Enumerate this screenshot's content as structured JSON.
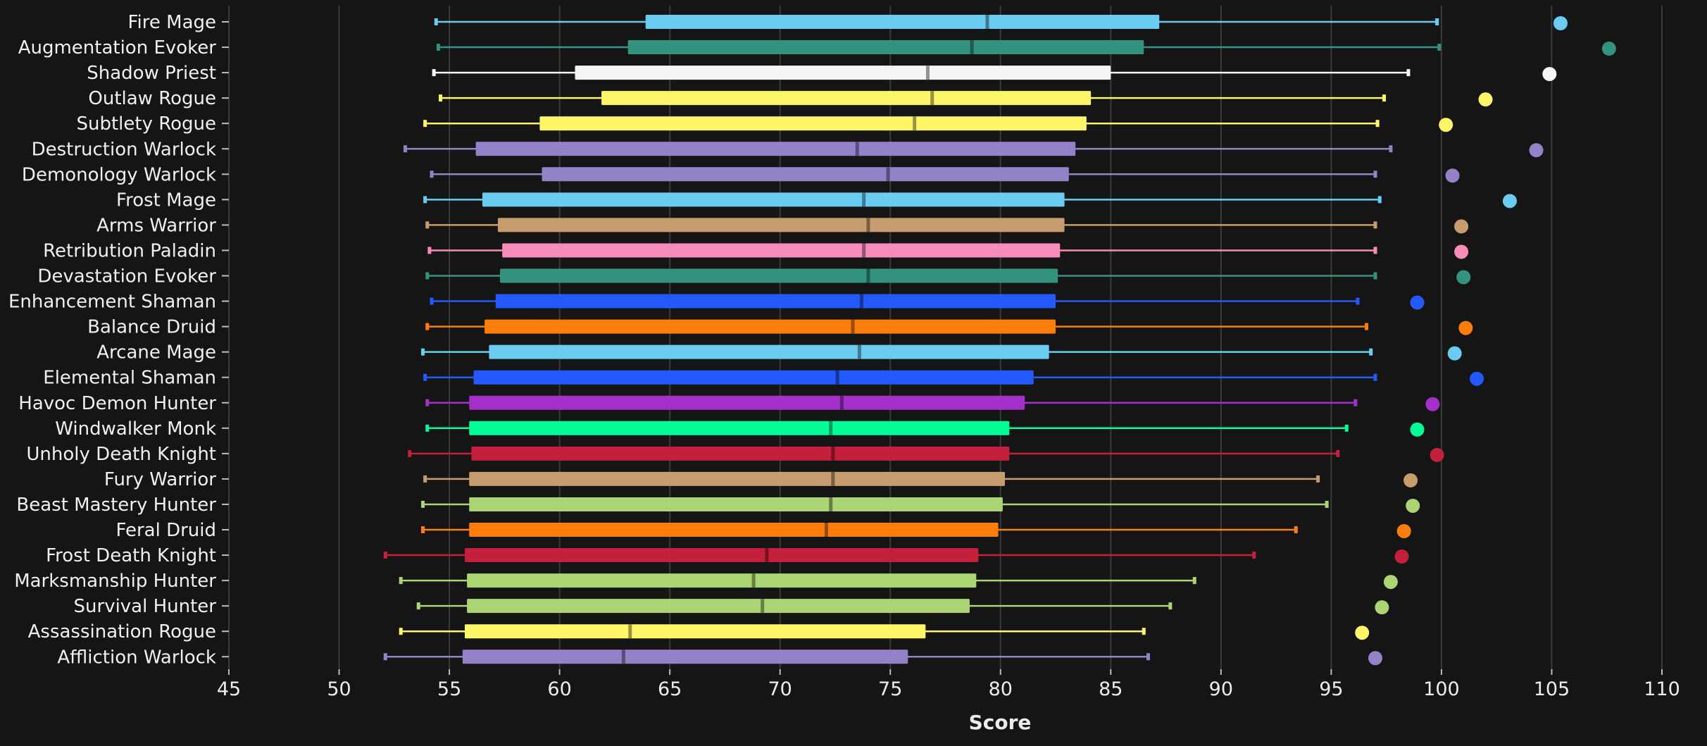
{
  "chart_data": {
    "type": "boxplot",
    "title": "",
    "xlabel": "Score",
    "ylabel": "",
    "xlim": [
      45,
      110
    ],
    "x_ticks": [
      45,
      50,
      55,
      60,
      65,
      70,
      75,
      80,
      85,
      90,
      95,
      100,
      105,
      110
    ],
    "grid": "vertical",
    "background": "#151515",
    "series": [
      {
        "name": "Fire Mage",
        "color": "#69CCF0",
        "whisker_low": 54.4,
        "q1": 63.9,
        "median": 79.4,
        "q3": 87.2,
        "whisker_high": 99.8,
        "max": 105.4
      },
      {
        "name": "Augmentation Evoker",
        "color": "#33937F",
        "whisker_low": 54.5,
        "q1": 63.1,
        "median": 78.7,
        "q3": 86.5,
        "whisker_high": 99.9,
        "max": 107.6
      },
      {
        "name": "Shadow Priest",
        "color": "#F5F5F5",
        "whisker_low": 54.3,
        "q1": 60.7,
        "median": 76.7,
        "q3": 85.0,
        "whisker_high": 98.5,
        "max": 104.9
      },
      {
        "name": "Outlaw Rogue",
        "color": "#FFF569",
        "whisker_low": 54.6,
        "q1": 61.9,
        "median": 76.9,
        "q3": 84.1,
        "whisker_high": 97.4,
        "max": 102.0
      },
      {
        "name": "Subtlety Rogue",
        "color": "#FFF569",
        "whisker_low": 53.9,
        "q1": 59.1,
        "median": 76.1,
        "q3": 83.9,
        "whisker_high": 97.1,
        "max": 100.2
      },
      {
        "name": "Destruction Warlock",
        "color": "#9482C9",
        "whisker_low": 53.0,
        "q1": 56.2,
        "median": 73.5,
        "q3": 83.4,
        "whisker_high": 97.7,
        "max": 104.3
      },
      {
        "name": "Demonology Warlock",
        "color": "#9482C9",
        "whisker_low": 54.2,
        "q1": 59.2,
        "median": 74.9,
        "q3": 83.1,
        "whisker_high": 97.0,
        "max": 100.5
      },
      {
        "name": "Frost Mage",
        "color": "#69CCF0",
        "whisker_low": 53.9,
        "q1": 56.5,
        "median": 73.8,
        "q3": 82.9,
        "whisker_high": 97.2,
        "max": 103.1
      },
      {
        "name": "Arms Warrior",
        "color": "#C79C6E",
        "whisker_low": 54.0,
        "q1": 57.2,
        "median": 74.0,
        "q3": 82.9,
        "whisker_high": 97.0,
        "max": 100.9
      },
      {
        "name": "Retribution Paladin",
        "color": "#F58CBA",
        "whisker_low": 54.1,
        "q1": 57.4,
        "median": 73.8,
        "q3": 82.7,
        "whisker_high": 97.0,
        "max": 100.9
      },
      {
        "name": "Devastation Evoker",
        "color": "#33937F",
        "whisker_low": 54.0,
        "q1": 57.3,
        "median": 74.0,
        "q3": 82.6,
        "whisker_high": 97.0,
        "max": 101.0
      },
      {
        "name": "Enhancement Shaman",
        "color": "#2459FF",
        "whisker_low": 54.2,
        "q1": 57.1,
        "median": 73.7,
        "q3": 82.5,
        "whisker_high": 96.2,
        "max": 98.9
      },
      {
        "name": "Balance Druid",
        "color": "#FF7D0A",
        "whisker_low": 54.0,
        "q1": 56.6,
        "median": 73.3,
        "q3": 82.5,
        "whisker_high": 96.6,
        "max": 101.1
      },
      {
        "name": "Arcane Mage",
        "color": "#69CCF0",
        "whisker_low": 53.8,
        "q1": 56.8,
        "median": 73.6,
        "q3": 82.2,
        "whisker_high": 96.8,
        "max": 100.6
      },
      {
        "name": "Elemental Shaman",
        "color": "#2459FF",
        "whisker_low": 53.9,
        "q1": 56.1,
        "median": 72.6,
        "q3": 81.5,
        "whisker_high": 97.0,
        "max": 101.6
      },
      {
        "name": "Havoc Demon Hunter",
        "color": "#A330C9",
        "whisker_low": 54.0,
        "q1": 55.9,
        "median": 72.8,
        "q3": 81.1,
        "whisker_high": 96.1,
        "max": 99.6
      },
      {
        "name": "Windwalker Monk",
        "color": "#00FF96",
        "whisker_low": 54.0,
        "q1": 55.9,
        "median": 72.3,
        "q3": 80.4,
        "whisker_high": 95.7,
        "max": 98.9
      },
      {
        "name": "Unholy Death Knight",
        "color": "#C41F3B",
        "whisker_low": 53.2,
        "q1": 56.0,
        "median": 72.4,
        "q3": 80.4,
        "whisker_high": 95.3,
        "max": 99.8
      },
      {
        "name": "Fury Warrior",
        "color": "#C79C6E",
        "whisker_low": 53.9,
        "q1": 55.9,
        "median": 72.4,
        "q3": 80.2,
        "whisker_high": 94.4,
        "max": 98.6
      },
      {
        "name": "Beast Mastery Hunter",
        "color": "#ABD473",
        "whisker_low": 53.8,
        "q1": 55.9,
        "median": 72.3,
        "q3": 80.1,
        "whisker_high": 94.8,
        "max": 98.7
      },
      {
        "name": "Feral Druid",
        "color": "#FF7D0A",
        "whisker_low": 53.8,
        "q1": 55.9,
        "median": 72.1,
        "q3": 79.9,
        "whisker_high": 93.4,
        "max": 98.3
      },
      {
        "name": "Frost Death Knight",
        "color": "#C41F3B",
        "whisker_low": 52.1,
        "q1": 55.7,
        "median": 69.4,
        "q3": 79.0,
        "whisker_high": 91.5,
        "max": 98.2
      },
      {
        "name": "Marksmanship Hunter",
        "color": "#ABD473",
        "whisker_low": 52.8,
        "q1": 55.8,
        "median": 68.8,
        "q3": 78.9,
        "whisker_high": 88.8,
        "max": 97.7
      },
      {
        "name": "Survival Hunter",
        "color": "#ABD473",
        "whisker_low": 53.6,
        "q1": 55.8,
        "median": 69.2,
        "q3": 78.6,
        "whisker_high": 87.7,
        "max": 97.3
      },
      {
        "name": "Assassination Rogue",
        "color": "#FFF569",
        "whisker_low": 52.8,
        "q1": 55.7,
        "median": 63.2,
        "q3": 76.6,
        "whisker_high": 86.5,
        "max": 96.4
      },
      {
        "name": "Affliction Warlock",
        "color": "#9482C9",
        "whisker_low": 52.1,
        "q1": 55.6,
        "median": 62.9,
        "q3": 75.8,
        "whisker_high": 86.7,
        "max": 97.0
      }
    ]
  }
}
